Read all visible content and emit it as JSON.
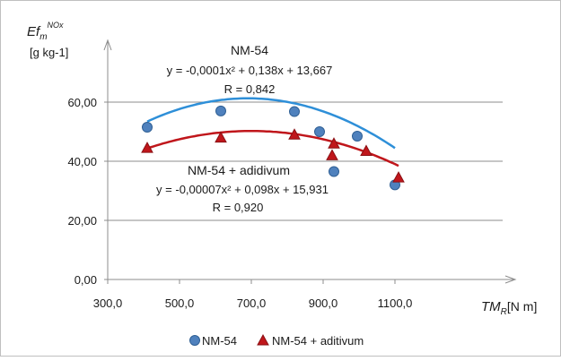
{
  "chart_data": {
    "type": "scatter",
    "ylabel": {
      "main": "Ef",
      "sub": "m",
      "sup": "NOx",
      "unit": "[g kg-1]"
    },
    "xlabel": {
      "main": "TM",
      "sub": "R",
      "unit": "[N m]"
    },
    "xlim": [
      300,
      1200
    ],
    "ylim": [
      0,
      70
    ],
    "xticks": [
      "300,0",
      "500,0",
      "700,0",
      "900,0",
      "1100,0"
    ],
    "yticks": [
      "0,00",
      "20,00",
      "40,00",
      "60,00"
    ],
    "grid": "horizontal",
    "legend_position": "bottom",
    "series": [
      {
        "name": "NM-54",
        "marker": "circle",
        "color": "#4f81bd",
        "trend_color": "#2e8fd8",
        "points": [
          [
            410,
            51.5
          ],
          [
            615,
            57.0
          ],
          [
            820,
            56.8
          ],
          [
            890,
            50.0
          ],
          [
            930,
            36.5
          ],
          [
            995,
            48.5
          ],
          [
            1100,
            32.0
          ]
        ],
        "trend": {
          "label": "NM-54",
          "equation": "y = -0,0001x² + 0,138x + 13,667",
          "r": "R = 0,842",
          "coef": [
            -0.0001,
            0.138,
            13.667
          ],
          "x_range": [
            410,
            1100
          ]
        }
      },
      {
        "name": "NM-54 + aditivum",
        "marker": "triangle",
        "color": "#c0161b",
        "trend_color": "#c0161b",
        "points": [
          [
            410,
            44.5
          ],
          [
            615,
            48.0
          ],
          [
            820,
            49.0
          ],
          [
            925,
            42.0
          ],
          [
            930,
            46.0
          ],
          [
            1020,
            43.5
          ],
          [
            1110,
            34.5
          ]
        ],
        "trend": {
          "label": "NM-54 + adidivum",
          "equation": "y = -0,00007x² + 0,098x + 15,931",
          "r": "R = 0,920",
          "coef": [
            -7e-05,
            0.098,
            15.931
          ],
          "x_range": [
            410,
            1110
          ]
        }
      }
    ]
  }
}
